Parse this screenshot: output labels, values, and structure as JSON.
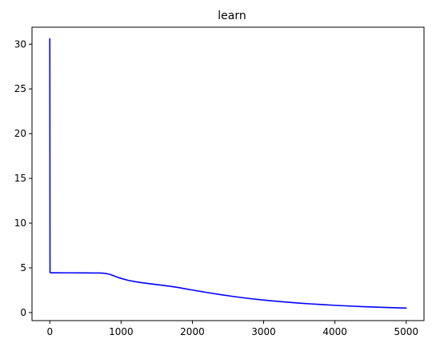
{
  "chart_data": {
    "type": "line",
    "title": "learn",
    "xlabel": "",
    "ylabel": "",
    "xlim": [
      -250,
      5250
    ],
    "ylim": [
      -0.9,
      31.9
    ],
    "grid": false,
    "x_ticks": [
      0,
      1000,
      2000,
      3000,
      4000,
      5000
    ],
    "x_tick_labels": [
      "0",
      "1000",
      "2000",
      "3000",
      "4000",
      "5000"
    ],
    "y_ticks": [
      0,
      5,
      10,
      15,
      20,
      25,
      30
    ],
    "y_tick_labels": [
      "0",
      "5",
      "10",
      "15",
      "20",
      "25",
      "30"
    ],
    "series": [
      {
        "color": "#0000ff",
        "x": [
          0,
          3,
          10,
          30,
          100,
          200,
          300,
          400,
          500,
          600,
          700,
          750,
          800,
          850,
          900,
          950,
          1000,
          1100,
          1200,
          1300,
          1400,
          1500,
          1600,
          1700,
          1800,
          1900,
          2000,
          2200,
          2400,
          2600,
          2800,
          3000,
          3200,
          3400,
          3600,
          3800,
          4000,
          4200,
          4400,
          4600,
          4800,
          5000
        ],
        "y": [
          30.6,
          4.5,
          4.45,
          4.45,
          4.45,
          4.44,
          4.44,
          4.43,
          4.43,
          4.42,
          4.42,
          4.4,
          4.35,
          4.25,
          4.1,
          3.95,
          3.82,
          3.6,
          3.45,
          3.33,
          3.23,
          3.13,
          3.03,
          2.93,
          2.8,
          2.66,
          2.52,
          2.25,
          2.0,
          1.77,
          1.57,
          1.4,
          1.25,
          1.12,
          1.0,
          0.9,
          0.81,
          0.73,
          0.66,
          0.6,
          0.55,
          0.5
        ]
      }
    ]
  }
}
